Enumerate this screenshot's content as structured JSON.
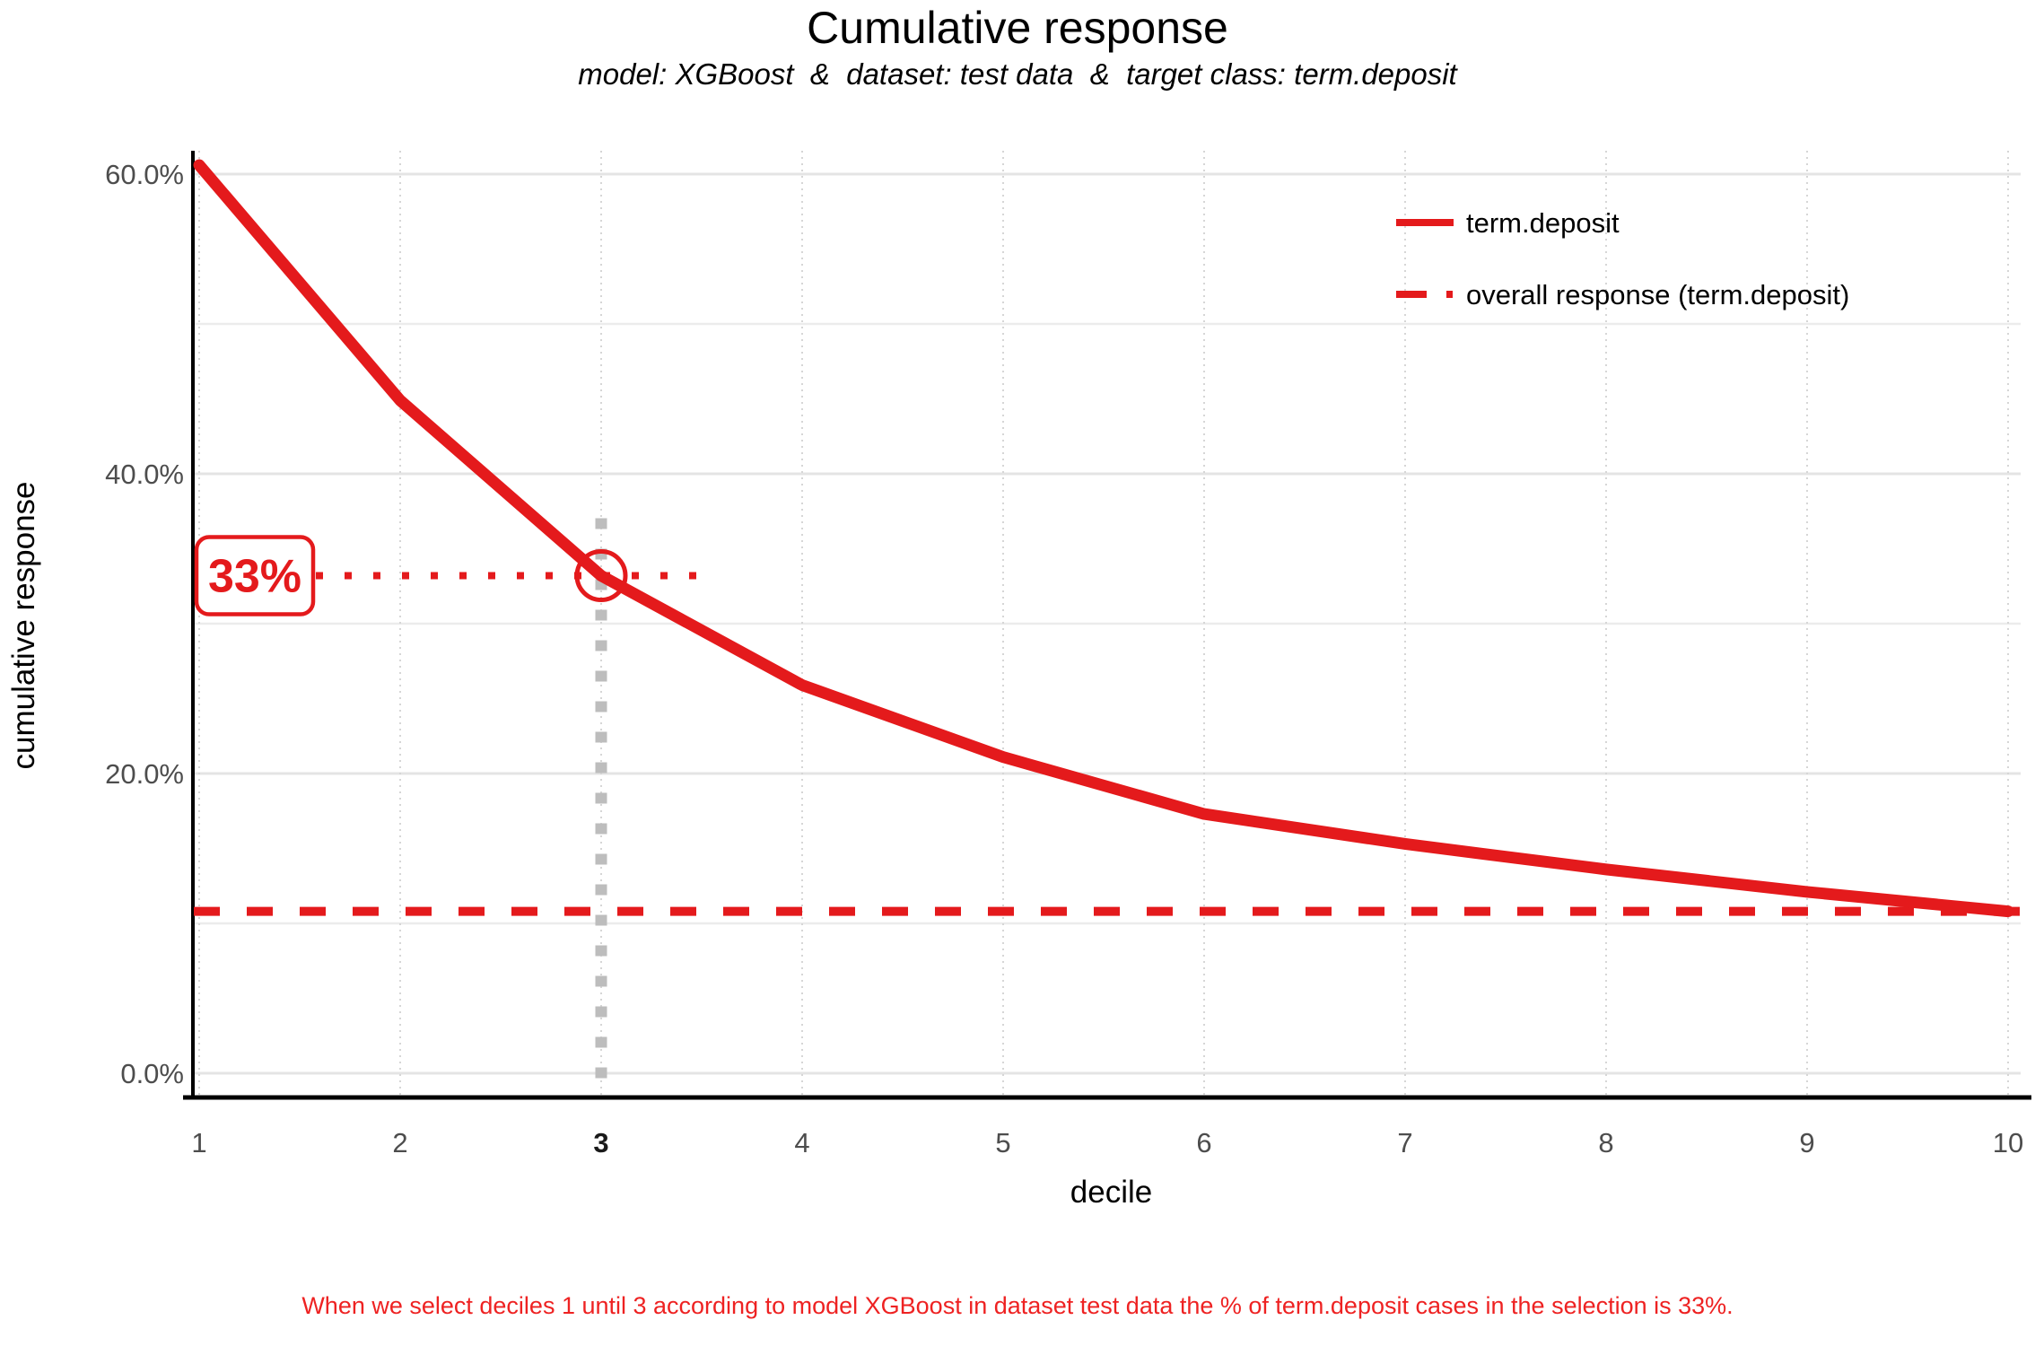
{
  "header": {
    "title": "Cumulative response",
    "subtitle": "model: XGBoost  &  dataset: test data  &  target class: term.deposit"
  },
  "chart_data": {
    "type": "line",
    "x": [
      1,
      2,
      3,
      4,
      5,
      6,
      7,
      8,
      9,
      10
    ],
    "xlabel": "decile",
    "ylabel": "cumulative response",
    "series": [
      {
        "name": "term.deposit",
        "style": "solid",
        "values": [
          60.6,
          44.9,
          33.2,
          25.9,
          21.1,
          17.3,
          15.3,
          13.6,
          12.1,
          10.8
        ]
      },
      {
        "name": "overall response (term.deposit)",
        "style": "dashed",
        "constant_value": 10.8
      }
    ],
    "ylim": [
      0,
      63
    ],
    "yticks": {
      "values": [
        0,
        20,
        40,
        60
      ],
      "labels": [
        "0.0%",
        "20.0%",
        "40.0%",
        "60.0%"
      ],
      "minor": [
        10,
        30,
        50
      ]
    },
    "grid": "horizontal solid light gray, vertical dotted light gray at each decile",
    "legend_position": "top-right inside panel"
  },
  "annotation": {
    "decile": 3,
    "value": 33.2,
    "value_label": "33%",
    "highlighted_xtick": "3"
  },
  "caption": {
    "text": "When we select deciles 1 until 3 according to model XGBoost in dataset test data the % of term.deposit cases in the selection is 33%."
  },
  "colors": {
    "series_red": "#E41A1C",
    "caption_red": "#EE2222",
    "axis_text_gray": "#4D4D4D",
    "highlight_tick_black": "#1A1A1A",
    "grid_major": "#E4E4E4",
    "grid_minor": "#ECECEC",
    "grid_vertical_dotted": "#D6D6D6",
    "annotation_gray": "#BDBDBD",
    "axis_line_black": "#000000",
    "background": "#FFFFFF"
  }
}
